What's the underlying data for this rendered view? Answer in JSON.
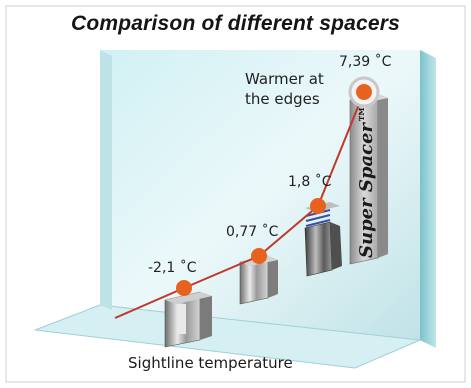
{
  "chart_data": {
    "type": "line",
    "title": "Comparison of different spacers",
    "xlabel": "Sightline temperature",
    "ylabel": "",
    "points": [
      {
        "value": -2.1,
        "label": "-2,1 ˚C"
      },
      {
        "value": 0.77,
        "label": "0,77 ˚C"
      },
      {
        "value": 1.8,
        "label": "1,8 ˚C"
      },
      {
        "value": 7.39,
        "label": "7,39 ˚C"
      }
    ],
    "annotation": "Warmer at the edges",
    "annotation_lines": [
      "Warmer at",
      "the edges"
    ],
    "brand_label": "Super Spacer™",
    "line_color": "#c0392b",
    "marker_color": "#e8621f",
    "glass_color": "#a9d8de"
  }
}
